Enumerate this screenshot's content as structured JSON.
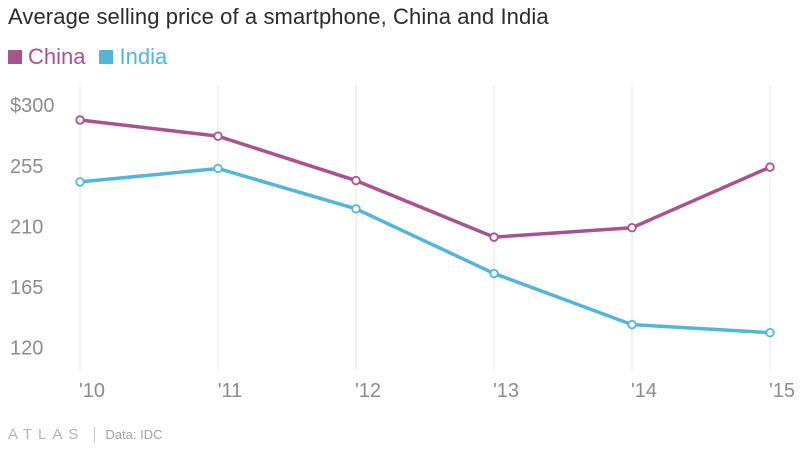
{
  "title": "Average selling price of a smartphone, China and India",
  "footer": {
    "brand": "ATLAS",
    "source": "Data: IDC"
  },
  "chart_data": {
    "type": "line",
    "title": "Average selling price of a smartphone, China and India",
    "xlabel": "",
    "ylabel": "",
    "categories": [
      "'10",
      "'11",
      "'12",
      "'13",
      "'14",
      "'15"
    ],
    "y_ticks": [
      "$300",
      "255",
      "210",
      "165",
      "120"
    ],
    "y_tick_values": [
      300,
      255,
      210,
      165,
      120
    ],
    "ylim": [
      107,
      315
    ],
    "grid": {
      "vertical": true,
      "horizontal": false
    },
    "legend_position": "top-left",
    "series": [
      {
        "name": "China",
        "color": "#a8528f",
        "values": [
          289,
          277,
          244,
          202,
          209,
          254
        ]
      },
      {
        "name": "India",
        "color": "#52b5d9",
        "values": [
          243,
          253,
          223,
          175,
          137,
          131
        ]
      }
    ]
  }
}
